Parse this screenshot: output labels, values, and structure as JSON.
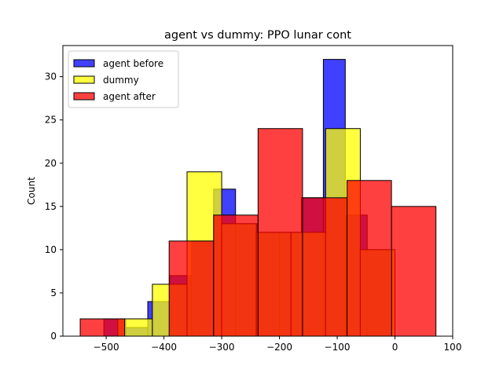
{
  "chart_data": {
    "type": "bar",
    "title": "agent vs dummy: PPO lunar cont",
    "xlabel": "",
    "ylabel": "Count",
    "xlim": [
      -575,
      100
    ],
    "ylim": [
      0,
      33.6
    ],
    "xticks": [
      -500,
      -400,
      -300,
      -200,
      -100,
      0,
      100
    ],
    "xtick_labels": [
      "−500",
      "−400",
      "−300",
      "−200",
      "−100",
      "0",
      "100"
    ],
    "yticks": [
      0,
      5,
      10,
      15,
      20,
      25,
      30
    ],
    "ytick_labels": [
      "0",
      "5",
      "10",
      "15",
      "20",
      "25",
      "30"
    ],
    "grid": false,
    "legend_position": "top-left",
    "series": [
      {
        "name": "agent before",
        "color": "#0000ff",
        "opacity": 0.75,
        "bins": [
          {
            "x0": -504,
            "x1": -466,
            "count": 2
          },
          {
            "x0": -466,
            "x1": -428,
            "count": 1
          },
          {
            "x0": -428,
            "x1": -390,
            "count": 4
          },
          {
            "x0": -390,
            "x1": -352,
            "count": 7
          },
          {
            "x0": -352,
            "x1": -314,
            "count": 11
          },
          {
            "x0": -314,
            "x1": -276,
            "count": 17
          },
          {
            "x0": -276,
            "x1": -238,
            "count": 13
          },
          {
            "x0": -238,
            "x1": -200,
            "count": 12
          },
          {
            "x0": -200,
            "x1": -162,
            "count": 12
          },
          {
            "x0": -162,
            "x1": -124,
            "count": 16
          },
          {
            "x0": -124,
            "x1": -86,
            "count": 32
          },
          {
            "x0": -86,
            "x1": -48,
            "count": 14
          },
          {
            "x0": -48,
            "x1": -10,
            "count": 10
          }
        ]
      },
      {
        "name": "dummy",
        "color": "#ffff00",
        "opacity": 0.75,
        "bins": [
          {
            "x0": -480,
            "x1": -420,
            "count": 2
          },
          {
            "x0": -420,
            "x1": -360,
            "count": 6
          },
          {
            "x0": -360,
            "x1": -300,
            "count": 19
          },
          {
            "x0": -300,
            "x1": -240,
            "count": 13
          },
          {
            "x0": -240,
            "x1": -180,
            "count": 12
          },
          {
            "x0": -180,
            "x1": -120,
            "count": 12
          },
          {
            "x0": -120,
            "x1": -60,
            "count": 24
          },
          {
            "x0": -60,
            "x1": 0,
            "count": 10
          }
        ]
      },
      {
        "name": "agent after",
        "color": "#ff0000",
        "opacity": 0.75,
        "bins": [
          {
            "x0": -545,
            "x1": -468,
            "count": 2
          },
          {
            "x0": -468,
            "x1": -391,
            "count": 0
          },
          {
            "x0": -391,
            "x1": -314,
            "count": 11
          },
          {
            "x0": -314,
            "x1": -237,
            "count": 14
          },
          {
            "x0": -237,
            "x1": -160,
            "count": 24
          },
          {
            "x0": -160,
            "x1": -83,
            "count": 16
          },
          {
            "x0": -83,
            "x1": -6,
            "count": 18
          },
          {
            "x0": -6,
            "x1": 71,
            "count": 15
          }
        ]
      }
    ]
  }
}
